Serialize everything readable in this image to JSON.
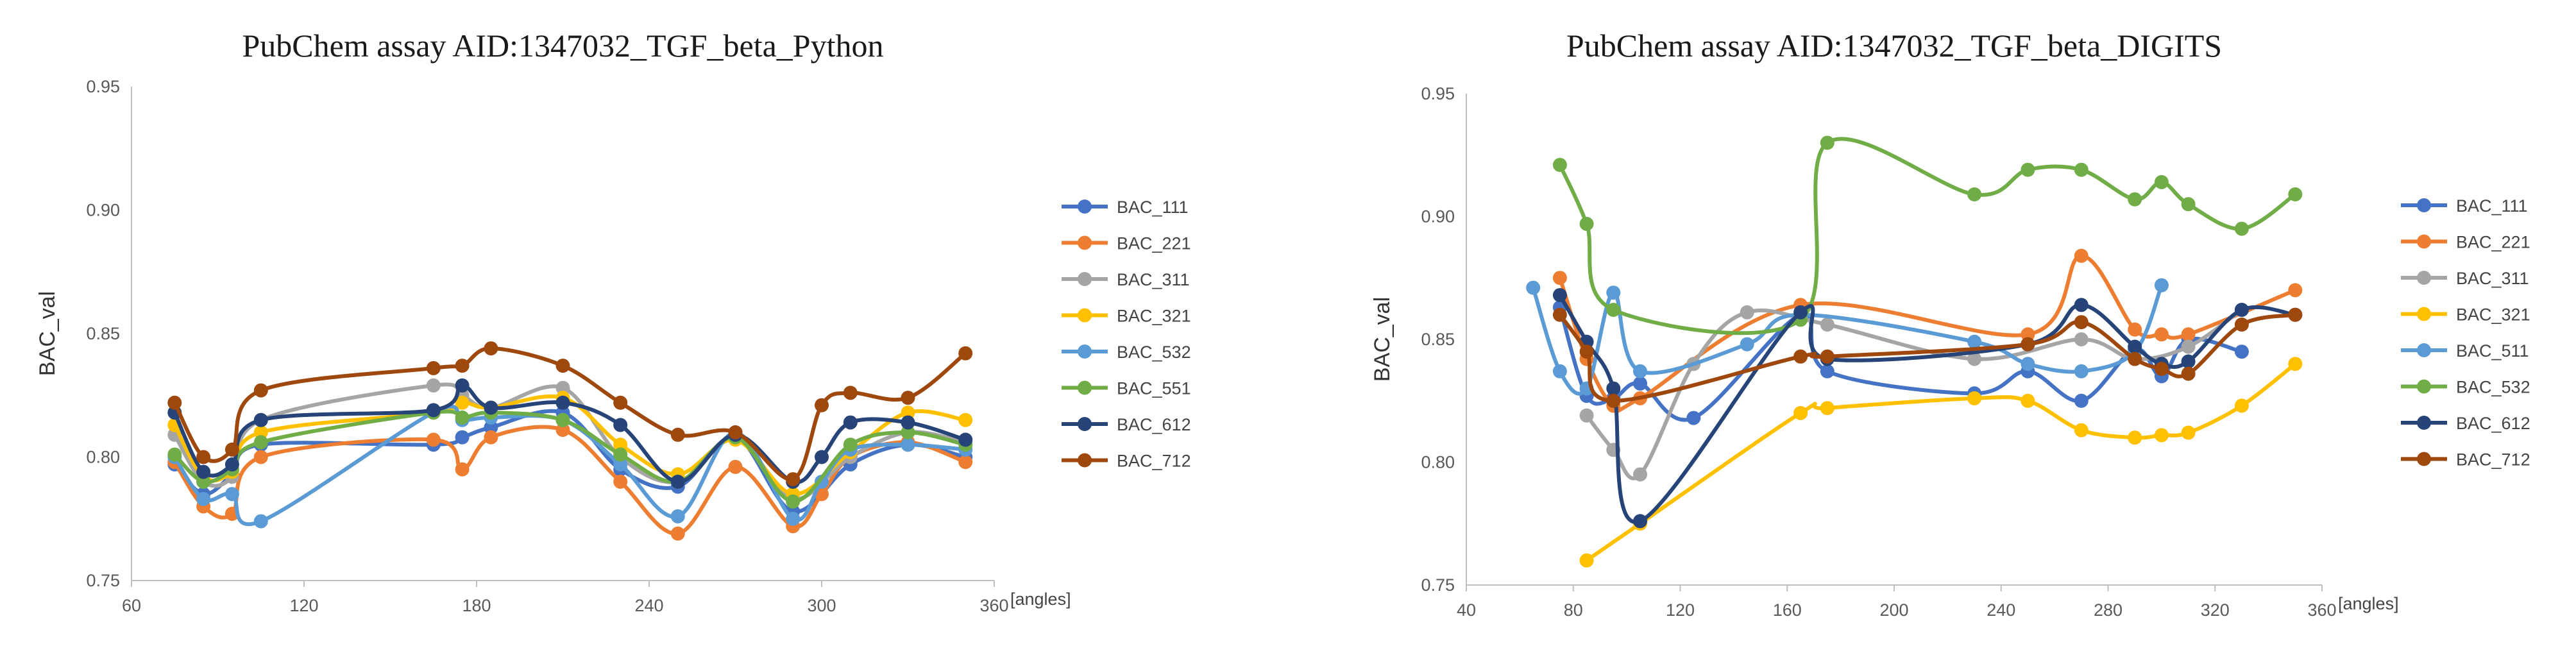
{
  "chart_data": [
    {
      "type": "line",
      "title": "PubChem assay AID:1347032_TGF_beta_Python",
      "ylabel": "BAC_val",
      "xlabel": "[angles]",
      "xlim": [
        60,
        360
      ],
      "ylim": [
        0.75,
        0.95
      ],
      "xticks": [
        60,
        120,
        180,
        240,
        300,
        360
      ],
      "yticks": [
        0.75,
        0.8,
        0.85,
        0.9,
        0.95
      ],
      "ytick_labels": [
        "0.75",
        "0.80",
        "0.85",
        "0.90",
        "0.95"
      ],
      "legend_position": "right",
      "series": [
        {
          "name": "BAC_111",
          "color": "#4472C4",
          "x": [
            75,
            85,
            95,
            105,
            165,
            175,
            185,
            210,
            230,
            250,
            270,
            290,
            310,
            330,
            350
          ],
          "y": [
            0.797,
            0.785,
            0.793,
            0.805,
            0.805,
            0.808,
            0.812,
            0.818,
            0.795,
            0.788,
            0.808,
            0.778,
            0.797,
            0.805,
            0.8
          ]
        },
        {
          "name": "BAC_221",
          "color": "#ED7D31",
          "x": [
            75,
            85,
            95,
            105,
            165,
            175,
            185,
            210,
            230,
            250,
            270,
            290,
            300,
            310,
            330,
            350
          ],
          "y": [
            0.798,
            0.78,
            0.777,
            0.8,
            0.807,
            0.795,
            0.808,
            0.811,
            0.79,
            0.769,
            0.796,
            0.772,
            0.785,
            0.8,
            0.806,
            0.798
          ]
        },
        {
          "name": "BAC_311",
          "color": "#A5A5A5",
          "x": [
            75,
            85,
            95,
            105,
            165,
            175,
            185,
            210,
            230,
            250,
            270,
            290,
            310,
            330,
            350
          ],
          "y": [
            0.809,
            0.79,
            0.792,
            0.815,
            0.829,
            0.825,
            0.82,
            0.828,
            0.8,
            0.79,
            0.808,
            0.783,
            0.8,
            0.81,
            0.806
          ]
        },
        {
          "name": "BAC_321",
          "color": "#FFC000",
          "x": [
            75,
            85,
            95,
            105,
            165,
            175,
            185,
            210,
            230,
            250,
            270,
            290,
            310,
            330,
            350
          ],
          "y": [
            0.813,
            0.792,
            0.794,
            0.81,
            0.818,
            0.822,
            0.82,
            0.824,
            0.805,
            0.793,
            0.807,
            0.785,
            0.802,
            0.818,
            0.815
          ]
        },
        {
          "name": "BAC_532",
          "color": "#5B9BD5",
          "x": [
            75,
            85,
            95,
            105,
            165,
            175,
            185,
            210,
            230,
            250,
            270,
            290,
            300,
            310,
            330,
            350
          ],
          "y": [
            0.8,
            0.783,
            0.785,
            0.774,
            0.818,
            0.815,
            0.816,
            0.815,
            0.797,
            0.776,
            0.81,
            0.775,
            0.79,
            0.803,
            0.805,
            0.803
          ]
        },
        {
          "name": "BAC_551",
          "color": "#70AD47",
          "x": [
            75,
            85,
            95,
            105,
            165,
            175,
            185,
            210,
            230,
            250,
            270,
            290,
            310,
            330,
            350
          ],
          "y": [
            0.801,
            0.79,
            0.795,
            0.806,
            0.818,
            0.816,
            0.818,
            0.815,
            0.801,
            0.79,
            0.808,
            0.782,
            0.805,
            0.81,
            0.805
          ]
        },
        {
          "name": "BAC_612",
          "color": "#264478",
          "x": [
            75,
            85,
            95,
            105,
            165,
            175,
            185,
            210,
            230,
            250,
            270,
            290,
            300,
            310,
            330,
            350
          ],
          "y": [
            0.818,
            0.794,
            0.797,
            0.815,
            0.819,
            0.829,
            0.82,
            0.822,
            0.813,
            0.79,
            0.809,
            0.79,
            0.8,
            0.814,
            0.814,
            0.807
          ]
        },
        {
          "name": "BAC_712",
          "color": "#9E480E",
          "x": [
            75,
            85,
            95,
            105,
            165,
            175,
            185,
            210,
            230,
            250,
            270,
            290,
            300,
            310,
            330,
            350
          ],
          "y": [
            0.822,
            0.8,
            0.803,
            0.827,
            0.836,
            0.837,
            0.844,
            0.837,
            0.822,
            0.809,
            0.81,
            0.791,
            0.821,
            0.826,
            0.824,
            0.842
          ]
        }
      ]
    },
    {
      "type": "line",
      "title": "PubChem assay AID:1347032_TGF_beta_DIGITS",
      "ylabel": "BAC_val",
      "xlabel": "[angles]",
      "xlim": [
        40,
        360
      ],
      "ylim": [
        0.75,
        0.95
      ],
      "xticks": [
        40,
        80,
        120,
        160,
        200,
        240,
        280,
        320,
        360
      ],
      "yticks": [
        0.75,
        0.8,
        0.85,
        0.9,
        0.95
      ],
      "ytick_labels": [
        "0.75",
        "0.80",
        "0.85",
        "0.90",
        "0.95"
      ],
      "legend_position": "right",
      "series": [
        {
          "name": "BAC_111",
          "color": "#4472C4",
          "x": [
            75,
            85,
            95,
            105,
            125,
            165,
            175,
            230,
            250,
            270,
            290,
            300,
            310,
            330
          ],
          "y": [
            0.863,
            0.827,
            0.826,
            0.832,
            0.818,
            0.86,
            0.837,
            0.828,
            0.837,
            0.825,
            0.846,
            0.835,
            0.85,
            0.845
          ]
        },
        {
          "name": "BAC_221",
          "color": "#ED7D31",
          "x": [
            75,
            85,
            95,
            105,
            165,
            250,
            270,
            290,
            300,
            310,
            350
          ],
          "y": [
            0.875,
            0.842,
            0.823,
            0.826,
            0.864,
            0.852,
            0.884,
            0.854,
            0.852,
            0.852,
            0.87
          ]
        },
        {
          "name": "BAC_311",
          "color": "#A5A5A5",
          "x": [
            85,
            95,
            105,
            125,
            145,
            175,
            230,
            270,
            290,
            310,
            330
          ],
          "y": [
            0.819,
            0.805,
            0.795,
            0.84,
            0.861,
            0.856,
            0.842,
            0.85,
            0.842,
            0.847,
            0.862
          ]
        },
        {
          "name": "BAC_321",
          "color": "#FFC000",
          "x": [
            85,
            105,
            165,
            175,
            230,
            250,
            270,
            290,
            300,
            310,
            330,
            350
          ],
          "y": [
            0.76,
            0.775,
            0.82,
            0.822,
            0.826,
            0.825,
            0.813,
            0.81,
            0.811,
            0.812,
            0.823,
            0.84
          ]
        },
        {
          "name": "BAC_511",
          "color": "#5B9BD5",
          "x": [
            65,
            75,
            85,
            95,
            105,
            145,
            165,
            230,
            250,
            270,
            290,
            300
          ],
          "y": [
            0.871,
            0.837,
            0.83,
            0.869,
            0.837,
            0.848,
            0.86,
            0.849,
            0.84,
            0.837,
            0.845,
            0.872
          ]
        },
        {
          "name": "BAC_532",
          "color": "#70AD47",
          "x": [
            75,
            85,
            95,
            165,
            175,
            230,
            250,
            270,
            290,
            300,
            310,
            330,
            350
          ],
          "y": [
            0.921,
            0.897,
            0.862,
            0.858,
            0.93,
            0.909,
            0.919,
            0.919,
            0.907,
            0.914,
            0.905,
            0.895,
            0.909
          ]
        },
        {
          "name": "BAC_612",
          "color": "#264478",
          "x": [
            75,
            85,
            95,
            105,
            165,
            175,
            250,
            270,
            290,
            300,
            310,
            330,
            350
          ],
          "y": [
            0.868,
            0.849,
            0.83,
            0.776,
            0.861,
            0.842,
            0.848,
            0.864,
            0.847,
            0.84,
            0.841,
            0.862,
            0.86
          ]
        },
        {
          "name": "BAC_712",
          "color": "#9E480E",
          "x": [
            75,
            85,
            95,
            165,
            175,
            250,
            270,
            290,
            300,
            310,
            330,
            350
          ],
          "y": [
            0.86,
            0.845,
            0.825,
            0.843,
            0.843,
            0.848,
            0.857,
            0.842,
            0.838,
            0.836,
            0.856,
            0.86
          ]
        }
      ]
    }
  ]
}
